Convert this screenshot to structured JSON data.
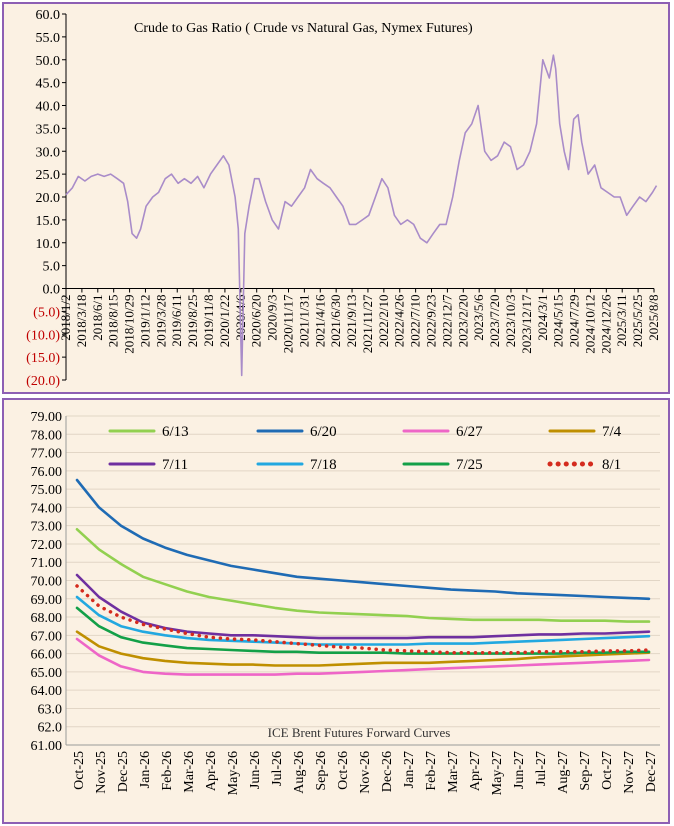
{
  "chart_data": [
    {
      "type": "line",
      "title": "Crude to Gas Ratio ( Crude vs Natural Gas, Nymex Futures)",
      "xlabel": "",
      "ylabel": "",
      "ylim": [
        -20,
        60
      ],
      "y_ticks": [
        "60.0",
        "55.0",
        "50.0",
        "45.0",
        "40.0",
        "35.0",
        "30.0",
        "25.0",
        "20.0",
        "15.0",
        "10.0",
        "5.0",
        "0.0",
        "(5.0)",
        "(10.0)",
        "(15.0)",
        "(20.0)"
      ],
      "y_tick_values": [
        60,
        55,
        50,
        45,
        40,
        35,
        30,
        25,
        20,
        15,
        10,
        5,
        0,
        -5,
        -10,
        -15,
        -20
      ],
      "negative_tick_color": "#c00000",
      "x_ticks": [
        "2018/1/2",
        "2018/3/18",
        "2018/6/1",
        "2018/8/15",
        "2018/10/29",
        "2019/1/12",
        "2019/3/28",
        "2019/6/11",
        "2019/8/25",
        "2019/11/8",
        "2020/1/22",
        "2020/4/6",
        "2020/6/20",
        "2020/9/3",
        "2020/11/17",
        "2021/1/31",
        "2021/4/16",
        "2021/6/30",
        "2021/9/13",
        "2021/11/27",
        "2022/2/10",
        "2022/4/26",
        "2022/7/10",
        "2022/9/23",
        "2022/12/7",
        "2023/2/20",
        "2023/5/6",
        "2023/7/20",
        "2023/10/3",
        "2023/12/17",
        "2024/3/1",
        "2024/5/15",
        "2024/7/29",
        "2024/10/12",
        "2024/12/26",
        "2025/3/11",
        "2025/5/25",
        "2025/8/8"
      ],
      "line_color": "#a98cc9",
      "grid": false,
      "series": [
        {
          "name": "",
          "points": [
            [
              "2018/1/2",
              20.5
            ],
            [
              "2018/2/1",
              22
            ],
            [
              "2018/3/1",
              24.5
            ],
            [
              "2018/4/1",
              23.5
            ],
            [
              "2018/5/1",
              24.5
            ],
            [
              "2018/6/1",
              25
            ],
            [
              "2018/7/1",
              24.5
            ],
            [
              "2018/8/1",
              25
            ],
            [
              "2018/9/1",
              24
            ],
            [
              "2018/10/1",
              23
            ],
            [
              "2018/10/20",
              19
            ],
            [
              "2018/11/10",
              12
            ],
            [
              "2018/12/1",
              11
            ],
            [
              "2018/12/20",
              13
            ],
            [
              "2019/1/15",
              18
            ],
            [
              "2019/2/15",
              20
            ],
            [
              "2019/3/15",
              21
            ],
            [
              "2019/4/15",
              24
            ],
            [
              "2019/5/15",
              25
            ],
            [
              "2019/6/15",
              23
            ],
            [
              "2019/7/15",
              24
            ],
            [
              "2019/8/15",
              23
            ],
            [
              "2019/9/15",
              24.5
            ],
            [
              "2019/10/15",
              22
            ],
            [
              "2019/11/15",
              25
            ],
            [
              "2019/12/15",
              27
            ],
            [
              "2020/1/15",
              29
            ],
            [
              "2020/2/10",
              27
            ],
            [
              "2020/3/10",
              20
            ],
            [
              "2020/3/25",
              13
            ],
            [
              "2020/4/10",
              -19
            ],
            [
              "2020/4/25",
              12
            ],
            [
              "2020/5/15",
              18
            ],
            [
              "2020/6/10",
              24
            ],
            [
              "2020/7/1",
              24
            ],
            [
              "2020/8/1",
              19
            ],
            [
              "2020/9/1",
              15
            ],
            [
              "2020/10/1",
              13
            ],
            [
              "2020/11/1",
              19
            ],
            [
              "2020/12/1",
              18
            ],
            [
              "2021/1/1",
              20
            ],
            [
              "2021/2/1",
              22
            ],
            [
              "2021/3/1",
              26
            ],
            [
              "2021/4/1",
              24
            ],
            [
              "2021/5/1",
              23
            ],
            [
              "2021/6/1",
              22
            ],
            [
              "2021/7/1",
              20
            ],
            [
              "2021/8/1",
              18
            ],
            [
              "2021/9/1",
              14
            ],
            [
              "2021/10/1",
              14
            ],
            [
              "2021/11/1",
              15
            ],
            [
              "2021/12/1",
              16
            ],
            [
              "2022/1/1",
              20
            ],
            [
              "2022/2/1",
              24
            ],
            [
              "2022/3/1",
              22
            ],
            [
              "2022/4/1",
              16
            ],
            [
              "2022/5/1",
              14
            ],
            [
              "2022/6/1",
              15
            ],
            [
              "2022/7/1",
              14
            ],
            [
              "2022/8/1",
              11
            ],
            [
              "2022/9/1",
              10
            ],
            [
              "2022/10/1",
              12
            ],
            [
              "2022/11/1",
              14
            ],
            [
              "2022/12/1",
              14
            ],
            [
              "2023/1/1",
              20
            ],
            [
              "2023/2/1",
              28
            ],
            [
              "2023/3/1",
              34
            ],
            [
              "2023/4/1",
              36
            ],
            [
              "2023/5/1",
              40
            ],
            [
              "2023/6/1",
              30
            ],
            [
              "2023/7/1",
              28
            ],
            [
              "2023/8/1",
              29
            ],
            [
              "2023/9/1",
              32
            ],
            [
              "2023/10/1",
              31
            ],
            [
              "2023/11/1",
              26
            ],
            [
              "2023/12/1",
              27
            ],
            [
              "2024/1/1",
              30
            ],
            [
              "2024/2/1",
              36
            ],
            [
              "2024/3/1",
              50
            ],
            [
              "2024/4/1",
              46
            ],
            [
              "2024/4/20",
              51
            ],
            [
              "2024/5/1",
              48
            ],
            [
              "2024/5/20",
              36
            ],
            [
              "2024/6/10",
              30
            ],
            [
              "2024/7/1",
              26
            ],
            [
              "2024/7/25",
              37
            ],
            [
              "2024/8/15",
              38
            ],
            [
              "2024/9/1",
              32
            ],
            [
              "2024/10/1",
              25
            ],
            [
              "2024/11/1",
              27
            ],
            [
              "2024/12/1",
              22
            ],
            [
              "2025/1/1",
              21
            ],
            [
              "2025/2/1",
              20
            ],
            [
              "2025/3/1",
              20
            ],
            [
              "2025/4/1",
              16
            ],
            [
              "2025/5/1",
              18
            ],
            [
              "2025/6/1",
              20
            ],
            [
              "2025/7/1",
              19
            ],
            [
              "2025/8/1",
              21
            ],
            [
              "2025/8/20",
              22.5
            ]
          ]
        }
      ]
    },
    {
      "type": "line",
      "title": "",
      "annotation": "ICE Brent Futures Forward Curves",
      "xlabel": "",
      "ylabel": "",
      "ylim": [
        61,
        79
      ],
      "y_ticks": [
        "79.00",
        "78.00",
        "77.00",
        "76.00",
        "75.00",
        "74.00",
        "73.00",
        "72.00",
        "71.00",
        "70.00",
        "69.00",
        "68.00",
        "67.00",
        "66.00",
        "65.00",
        "64.00",
        "63.0",
        "62.0",
        "61.00"
      ],
      "y_tick_values": [
        79,
        78,
        77,
        76,
        75,
        74,
        73,
        72,
        71,
        70,
        69,
        68,
        67,
        66,
        65,
        64,
        63,
        62,
        61
      ],
      "categories": [
        "Oct-25",
        "Nov-25",
        "Dec-25",
        "Jan-26",
        "Feb-26",
        "Mar-26",
        "Apr-26",
        "May-26",
        "Jun-26",
        "Jul-26",
        "Aug-26",
        "Sep-26",
        "Oct-26",
        "Nov-26",
        "Dec-26",
        "Jan-27",
        "Feb-27",
        "Mar-27",
        "Apr-27",
        "May-27",
        "Jun-27",
        "Jul-27",
        "Aug-27",
        "Sep-27",
        "Oct-27",
        "Nov-27",
        "Dec-27"
      ],
      "legend_position": "top",
      "grid": true,
      "series": [
        {
          "name": "6/13",
          "color": "#92d050",
          "dotted": false,
          "values": [
            72.8,
            71.7,
            70.9,
            70.2,
            69.8,
            69.4,
            69.1,
            68.9,
            68.7,
            68.5,
            68.35,
            68.25,
            68.2,
            68.15,
            68.1,
            68.05,
            67.95,
            67.9,
            67.85,
            67.85,
            67.85,
            67.85,
            67.8,
            67.8,
            67.8,
            67.75,
            67.75
          ]
        },
        {
          "name": "6/20",
          "color": "#1f6bb4",
          "dotted": false,
          "values": [
            75.5,
            74.0,
            73.0,
            72.3,
            71.8,
            71.4,
            71.1,
            70.8,
            70.6,
            70.4,
            70.2,
            70.1,
            70.0,
            69.9,
            69.8,
            69.7,
            69.6,
            69.5,
            69.45,
            69.4,
            69.3,
            69.25,
            69.2,
            69.15,
            69.1,
            69.05,
            69.0
          ]
        },
        {
          "name": "6/27",
          "color": "#ee66c7",
          "dotted": false,
          "values": [
            66.8,
            65.9,
            65.3,
            65.0,
            64.9,
            64.85,
            64.85,
            64.85,
            64.85,
            64.85,
            64.9,
            64.9,
            64.95,
            65.0,
            65.05,
            65.1,
            65.15,
            65.2,
            65.25,
            65.3,
            65.35,
            65.4,
            65.45,
            65.5,
            65.55,
            65.6,
            65.65
          ]
        },
        {
          "name": "7/4",
          "color": "#bf8f00",
          "dotted": false,
          "values": [
            67.2,
            66.4,
            66.0,
            65.75,
            65.6,
            65.5,
            65.45,
            65.4,
            65.4,
            65.35,
            65.35,
            65.35,
            65.4,
            65.45,
            65.5,
            65.5,
            65.5,
            65.55,
            65.6,
            65.65,
            65.7,
            65.8,
            65.85,
            65.9,
            65.95,
            66.0,
            66.05
          ]
        },
        {
          "name": "7/11",
          "color": "#6f30a0",
          "dotted": false,
          "values": [
            70.3,
            69.1,
            68.3,
            67.7,
            67.4,
            67.2,
            67.1,
            67.0,
            67.0,
            66.95,
            66.9,
            66.85,
            66.85,
            66.85,
            66.85,
            66.85,
            66.9,
            66.9,
            66.9,
            66.95,
            67.0,
            67.05,
            67.05,
            67.1,
            67.1,
            67.15,
            67.2
          ]
        },
        {
          "name": "7/18",
          "color": "#22a8e0",
          "dotted": false,
          "values": [
            69.1,
            68.1,
            67.5,
            67.2,
            67.0,
            66.85,
            66.75,
            66.7,
            66.65,
            66.6,
            66.55,
            66.5,
            66.5,
            66.5,
            66.5,
            66.5,
            66.55,
            66.55,
            66.55,
            66.6,
            66.65,
            66.7,
            66.75,
            66.8,
            66.85,
            66.9,
            66.95
          ]
        },
        {
          "name": "7/25",
          "color": "#13a048",
          "dotted": false,
          "values": [
            68.5,
            67.5,
            66.9,
            66.6,
            66.45,
            66.3,
            66.25,
            66.2,
            66.15,
            66.1,
            66.1,
            66.05,
            66.05,
            66.05,
            66.05,
            66.0,
            66.0,
            66.0,
            66.0,
            66.0,
            66.0,
            66.0,
            66.0,
            66.05,
            66.05,
            66.1,
            66.1
          ]
        },
        {
          "name": "8/1",
          "color": "#d42b1e",
          "dotted": true,
          "values": [
            69.7,
            68.6,
            68.0,
            67.6,
            67.35,
            67.1,
            66.9,
            66.8,
            66.75,
            66.65,
            66.55,
            66.45,
            66.35,
            66.3,
            66.2,
            66.15,
            66.1,
            66.05,
            66.05,
            66.05,
            66.05,
            66.1,
            66.1,
            66.1,
            66.15,
            66.15,
            66.2
          ]
        }
      ]
    }
  ]
}
